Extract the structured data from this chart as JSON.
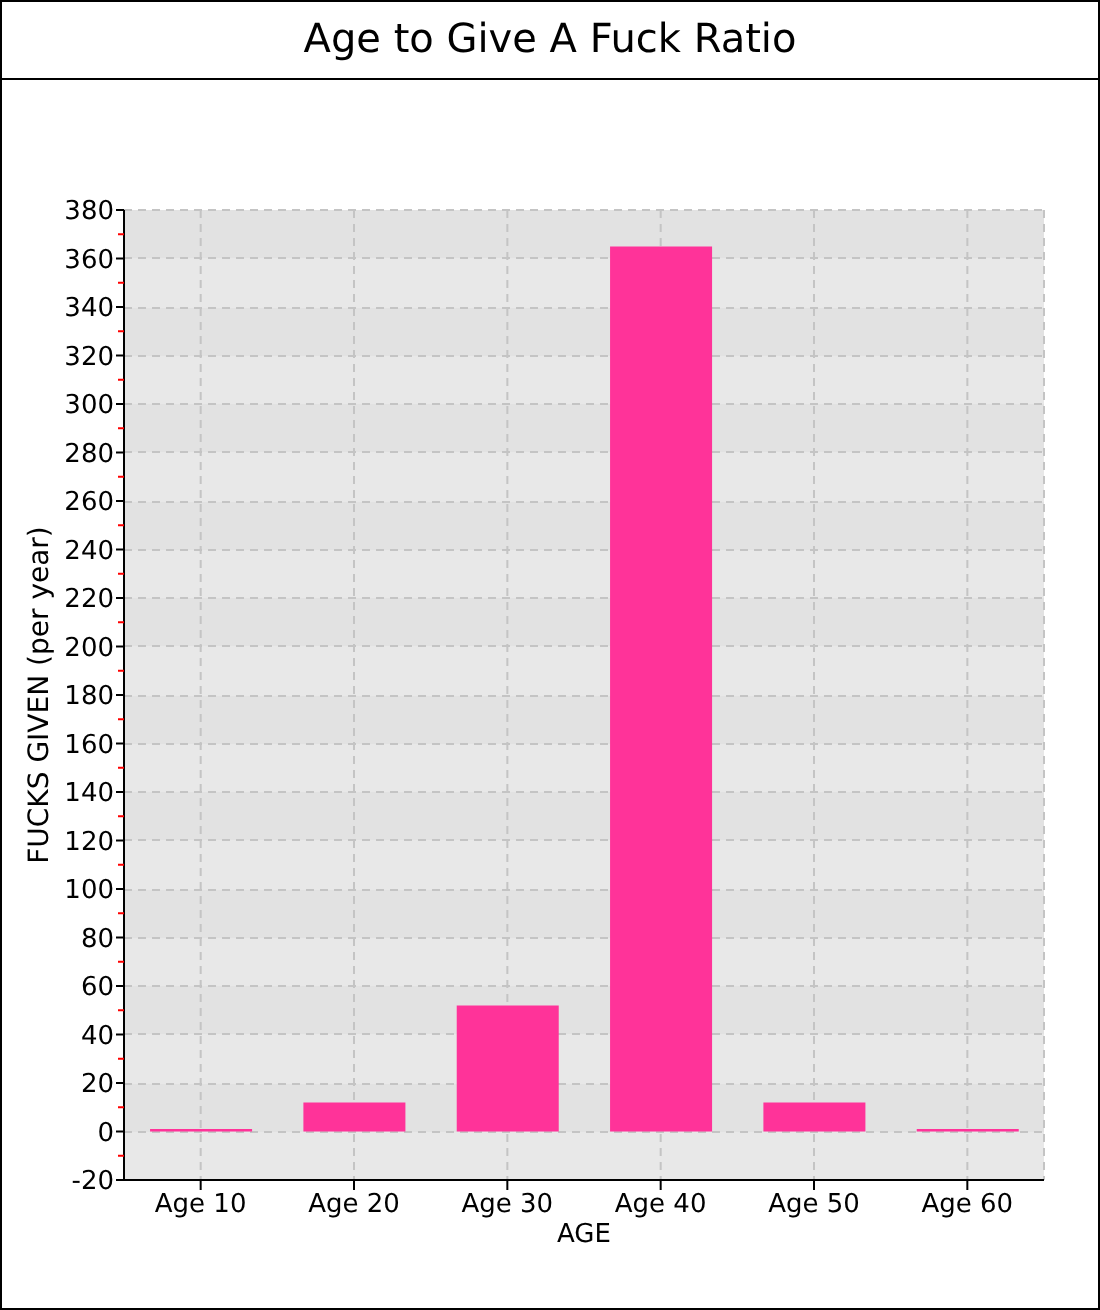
{
  "chart_data": {
    "type": "bar",
    "title": "Age to Give A Fuck Ratio",
    "xlabel": "AGE",
    "ylabel": "FUCKS GIVEN (per year)",
    "categories": [
      "Age 10",
      "Age 20",
      "Age 30",
      "Age 40",
      "Age 50",
      "Age 60"
    ],
    "values": [
      1,
      12,
      52,
      365,
      12,
      1
    ],
    "color": "#ff3399",
    "ylim": [
      -20,
      380
    ],
    "yticks": [
      -20,
      {
        "value": -10,
        "label": null
      },
      0,
      {
        "value": 10,
        "label": null
      },
      20,
      {
        "value": 30,
        "label": null
      },
      40,
      {
        "value": 50,
        "label": null
      },
      60,
      {
        "value": 70,
        "label": null
      },
      80,
      {
        "value": 90,
        "label": null
      },
      100,
      {
        "value": 110,
        "label": null
      },
      120,
      {
        "value": 130,
        "label": null
      },
      140,
      {
        "value": 150,
        "label": null
      },
      160,
      {
        "value": 170,
        "label": null
      },
      180,
      {
        "value": 190,
        "label": null
      },
      200,
      {
        "value": 210,
        "label": null
      },
      220,
      {
        "value": 230,
        "label": null
      },
      240,
      {
        "value": 250,
        "label": null
      },
      260,
      {
        "value": 270,
        "label": null
      },
      280,
      {
        "value": 290,
        "label": null
      },
      300,
      {
        "value": 310,
        "label": null
      },
      320,
      {
        "value": 330,
        "label": null
      },
      340,
      {
        "value": 350,
        "label": null
      },
      360,
      {
        "value": 370,
        "label": null
      },
      380
    ],
    "grid": true
  }
}
